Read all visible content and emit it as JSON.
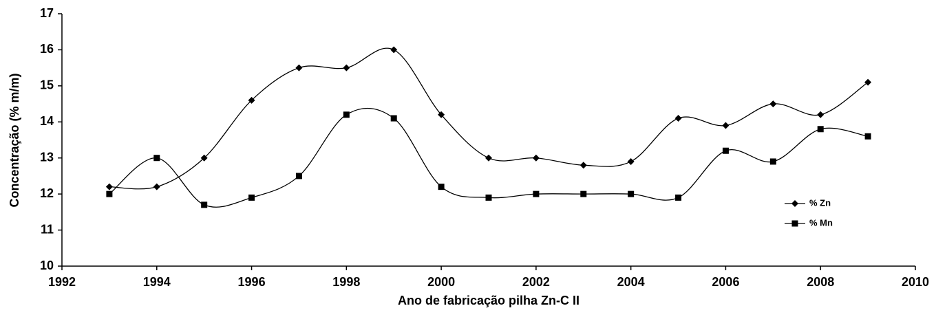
{
  "chart_data": {
    "type": "line",
    "xlabel": "Ano de fabricação pilha Zn-C II",
    "ylabel": "Concentração (% m/m)",
    "x": [
      1993,
      1994,
      1995,
      1996,
      1997,
      1998,
      1999,
      2000,
      2001,
      2002,
      2003,
      2004,
      2005,
      2006,
      2007,
      2008,
      2009
    ],
    "series": [
      {
        "name": "% Zn",
        "color": "#000000",
        "marker": "diamond",
        "values": [
          12.2,
          12.2,
          13.0,
          14.6,
          15.5,
          15.5,
          16.0,
          14.2,
          13.0,
          13.0,
          12.8,
          12.9,
          14.1,
          13.9,
          14.5,
          14.2,
          15.1
        ]
      },
      {
        "name": "% Mn",
        "color": "#000000",
        "marker": "square",
        "values": [
          12.0,
          13.0,
          11.7,
          11.9,
          12.5,
          14.2,
          14.1,
          12.2,
          11.9,
          12.0,
          12.0,
          12.0,
          11.9,
          13.2,
          12.9,
          13.8,
          13.6
        ]
      }
    ],
    "xlim": [
      1992,
      2010
    ],
    "xticks": [
      1992,
      1994,
      1996,
      1998,
      2000,
      2002,
      2004,
      2006,
      2008,
      2010
    ],
    "ylim": [
      10,
      17
    ],
    "yticks": [
      10,
      11,
      12,
      13,
      14,
      15,
      16,
      17
    ],
    "smooth": true,
    "grid": false,
    "legend": "right"
  }
}
